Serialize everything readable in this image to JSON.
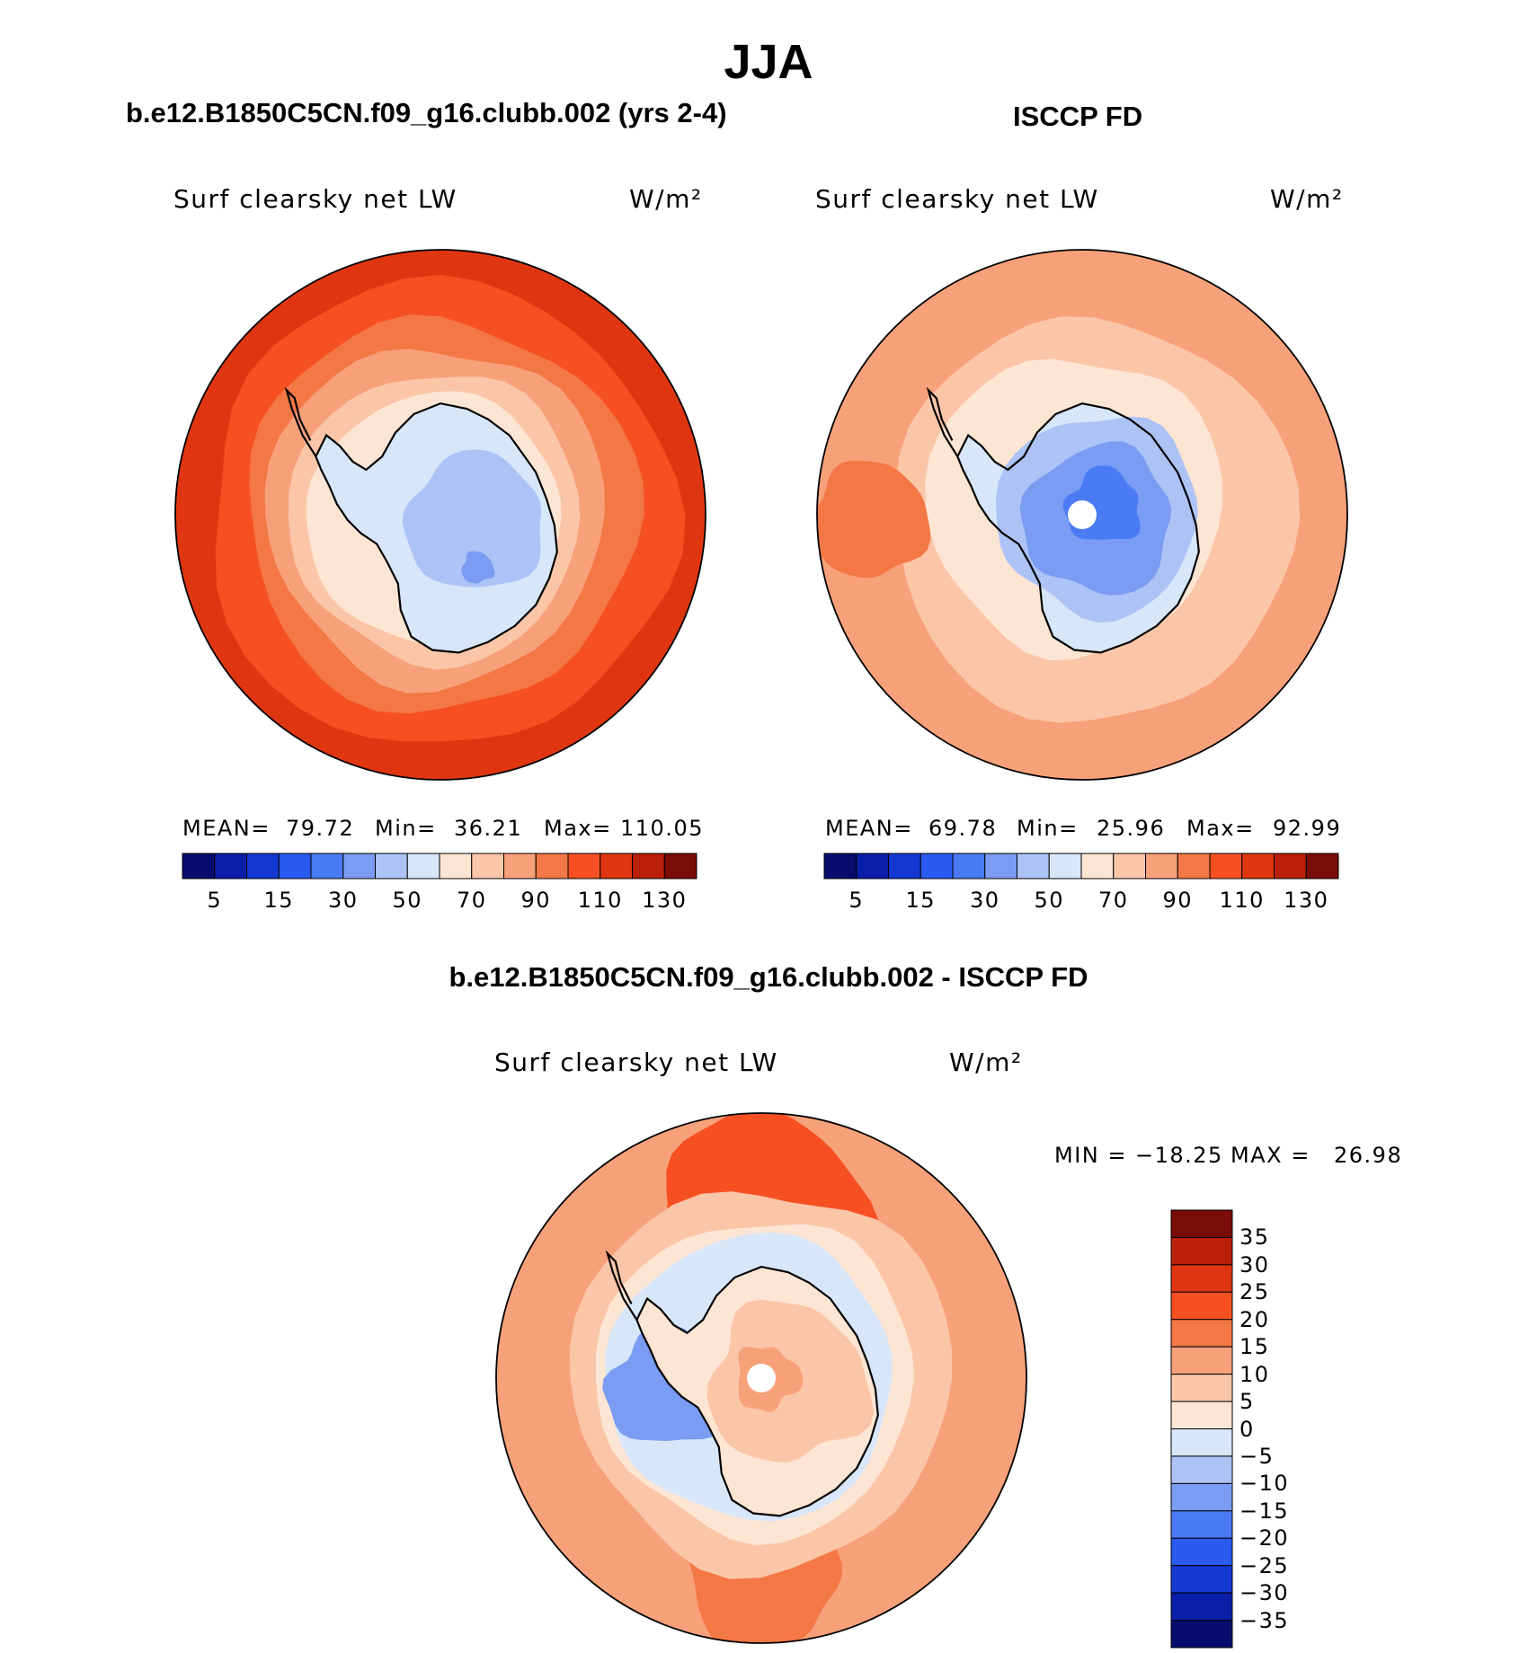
{
  "figure_title": "JJA",
  "diff_title": "b.e12.B1850C5CN.f09_g16.clubb.002 - ISCCP FD",
  "chart_data": [
    {
      "type": "heatmap",
      "projection": "south polar stereographic",
      "title": "b.e12.B1850C5CN.f09_g16.clubb.002 (yrs 2-4)",
      "variable": "Surf clearsky net LW",
      "units": "W/m²",
      "stats": {
        "mean_label": "MEAN=",
        "mean": "79.72",
        "min_label": "Min=",
        "min": "36.21",
        "max_label": "Max=",
        "max": "110.05"
      },
      "levels": [
        5,
        15,
        30,
        50,
        70,
        90,
        110,
        130
      ],
      "colorbar_ticks": [
        "5",
        "15",
        "30",
        "50",
        "70",
        "90",
        "110",
        "130"
      ],
      "colors": [
        "#070d6e",
        "#0a1eaa",
        "#1438d2",
        "#2a5af0",
        "#4a7af4",
        "#7a9cf2",
        "#adc3f6",
        "#d8e6fa",
        "#fde5d4",
        "#fbc6a8",
        "#f7a17a",
        "#f47746",
        "#f65022",
        "#df3611",
        "#ba1f0a",
        "#7a0b06"
      ]
    },
    {
      "type": "heatmap",
      "projection": "south polar stereographic",
      "title": "ISCCP FD",
      "variable": "Surf clearsky net LW",
      "units": "W/m²",
      "stats": {
        "mean_label": "MEAN=",
        "mean": "69.78",
        "min_label": "Min=",
        "min": "25.96",
        "max_label": "Max=",
        "max": "92.99"
      },
      "levels": [
        5,
        15,
        30,
        50,
        70,
        90,
        110,
        130
      ],
      "colorbar_ticks": [
        "5",
        "15",
        "30",
        "50",
        "70",
        "90",
        "110",
        "130"
      ],
      "colors": [
        "#070d6e",
        "#0a1eaa",
        "#1438d2",
        "#2a5af0",
        "#4a7af4",
        "#7a9cf2",
        "#adc3f6",
        "#d8e6fa",
        "#fde5d4",
        "#fbc6a8",
        "#f7a17a",
        "#f47746",
        "#f65022",
        "#df3611",
        "#ba1f0a",
        "#7a0b06"
      ]
    },
    {
      "type": "heatmap",
      "projection": "south polar stereographic",
      "title": "b.e12.B1850C5CN.f09_g16.clubb.002 - ISCCP FD",
      "variable": "Surf clearsky net LW",
      "units": "W/m²",
      "stats": {
        "min_label": "MIN =",
        "min": "−18.25",
        "max_label": "MAX =",
        "max": "26.98"
      },
      "levels": [
        -35,
        -30,
        -25,
        -20,
        -15,
        -10,
        -5,
        0,
        5,
        10,
        15,
        20,
        25,
        30,
        35
      ],
      "colorbar_ticks": [
        "35",
        "30",
        "25",
        "20",
        "15",
        "10",
        "5",
        "0",
        "−5",
        "−10",
        "−15",
        "−20",
        "−25",
        "−30",
        "−35"
      ],
      "colors": [
        "#7a0b06",
        "#ba1f0a",
        "#df3611",
        "#f65022",
        "#f47746",
        "#f7a17a",
        "#fbc6a8",
        "#fde5d4",
        "#d8e6fa",
        "#adc3f6",
        "#7a9cf2",
        "#4a7af4",
        "#2a5af0",
        "#1438d2",
        "#0a1eaa",
        "#070d6e"
      ]
    }
  ]
}
